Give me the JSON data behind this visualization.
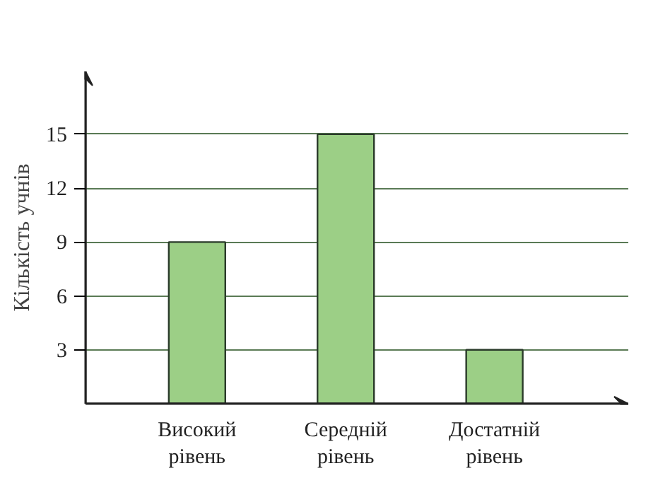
{
  "chart_data": {
    "type": "bar",
    "ylabel": "Кількість учнів",
    "categories": [
      "Високий рівень",
      "Середній рівень",
      "Достатній рівень"
    ],
    "values": [
      9,
      15,
      3
    ],
    "color": "#9ccf86",
    "ylim": [
      0,
      18.5
    ],
    "yticks": [
      3,
      6,
      9,
      12,
      15
    ],
    "grid": "y"
  }
}
